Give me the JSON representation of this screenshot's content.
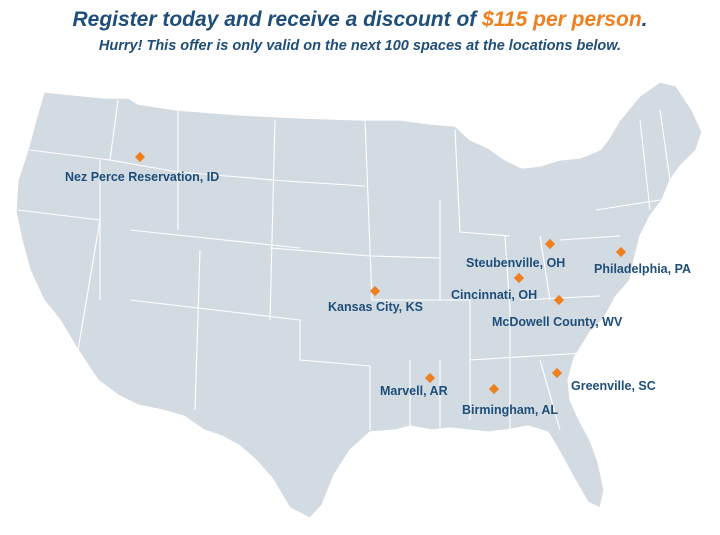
{
  "header": {
    "headline_prefix": "Register today and receive a discount of ",
    "headline_amount": "$115 per person",
    "headline_suffix": ".",
    "subheadline": "Hurry! This offer is only valid on the next 100 spaces at the locations below."
  },
  "colors": {
    "land": "#d3dbe2",
    "borders": "#ffffff",
    "marker": "#f07f1d",
    "text": "#1e4e79",
    "accent": "#f07f1d"
  },
  "locations": [
    {
      "id": "nez-perce",
      "label": "Nez Perce Reservation, ID"
    },
    {
      "id": "kansas-city",
      "label": "Kansas City, KS"
    },
    {
      "id": "steubenville",
      "label": "Steubenville, OH"
    },
    {
      "id": "cincinnati",
      "label": "Cincinnati, OH"
    },
    {
      "id": "philadelphia",
      "label": "Philadelphia, PA"
    },
    {
      "id": "mcdowell",
      "label": "McDowell County, WV"
    },
    {
      "id": "marvell",
      "label": "Marvell, AR"
    },
    {
      "id": "birmingham",
      "label": "Birmingham, AL"
    },
    {
      "id": "greenville",
      "label": "Greenville, SC"
    }
  ]
}
